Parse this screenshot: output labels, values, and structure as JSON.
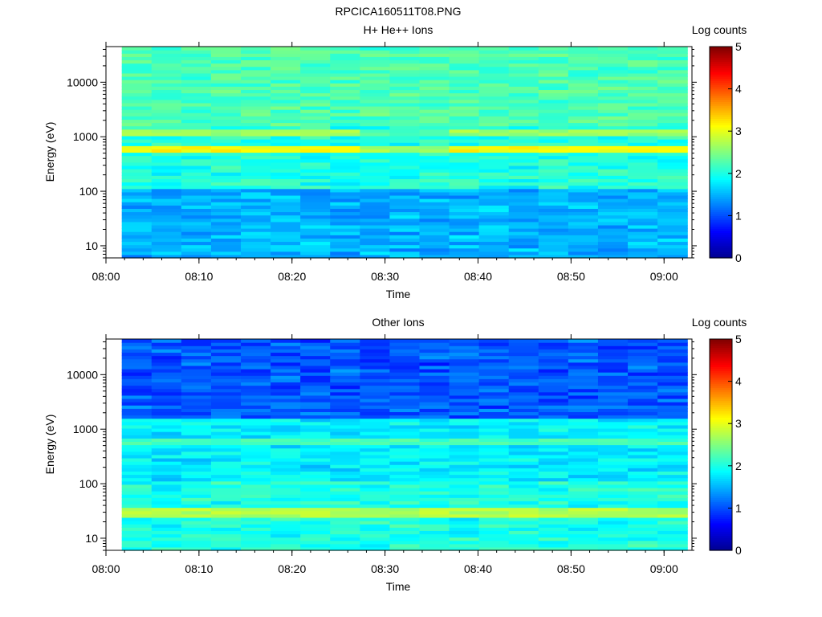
{
  "figure_title": "RPCICA160511T08.PNG",
  "colors": {
    "colormap": [
      "#00008f",
      "#0000ff",
      "#0080ff",
      "#00ffff",
      "#80ff80",
      "#ffff00",
      "#ff8000",
      "#ff0000",
      "#800000"
    ],
    "background": "#ffffff",
    "axes": "#000000"
  },
  "chart_data": [
    {
      "type": "heatmap",
      "title": "H+ He++ Ions",
      "xlabel": "Time",
      "ylabel": "Energy (eV)",
      "colorbar_label": "Log counts",
      "x_ticks": [
        "08:00",
        "08:10",
        "08:20",
        "08:30",
        "08:40",
        "08:50",
        "09:00"
      ],
      "y_ticks": [
        "10",
        "100",
        "1000",
        "10000"
      ],
      "colorbar_ticks": [
        "0",
        "1",
        "2",
        "3",
        "4",
        "5"
      ],
      "xlim": [
        "08:00",
        "09:03"
      ],
      "ylim": [
        6,
        45000
      ],
      "y_scale": "log",
      "clim": [
        0,
        5
      ],
      "data_start": "08:01.7",
      "data_end": "09:02.5",
      "time_bins": 19,
      "energy_bins": 64,
      "background_levels_low_energy": [
        1.4,
        1.6
      ],
      "background_levels_mid_energy": [
        1.9,
        2.1
      ],
      "background_levels_high_energy": [
        2.2,
        2.3
      ],
      "bands": [
        {
          "center_ev": 620,
          "width_decades": 0.07,
          "level": 3.1
        },
        {
          "center_ev": 1230,
          "width_decades": 0.05,
          "level": 2.65
        }
      ],
      "low_activity_window": [
        "08:27",
        "08:37"
      ]
    },
    {
      "type": "heatmap",
      "title": "Other Ions",
      "xlabel": "Time",
      "ylabel": "Energy (eV)",
      "colorbar_label": "Log counts",
      "x_ticks": [
        "08:00",
        "08:10",
        "08:20",
        "08:30",
        "08:40",
        "08:50",
        "09:00"
      ],
      "y_ticks": [
        "10",
        "100",
        "1000",
        "10000"
      ],
      "colorbar_ticks": [
        "0",
        "1",
        "2",
        "3",
        "4",
        "5"
      ],
      "xlim": [
        "08:00",
        "09:03"
      ],
      "ylim": [
        6,
        45000
      ],
      "y_scale": "log",
      "clim": [
        0,
        5
      ],
      "data_start": "08:01.7",
      "data_end": "09:02.5",
      "time_bins": 19,
      "energy_bins": 64,
      "background_levels_low_energy": [
        1.9,
        2.1
      ],
      "background_levels_mid_energy": [
        1.7,
        1.9
      ],
      "background_levels_high_energy": [
        0.9,
        1.2
      ],
      "bands": [
        {
          "center_ev": 620,
          "width_decades": 0.05,
          "level": 2.2
        },
        {
          "center_ev": 30,
          "width_decades": 0.1,
          "level": 2.75
        }
      ]
    }
  ]
}
